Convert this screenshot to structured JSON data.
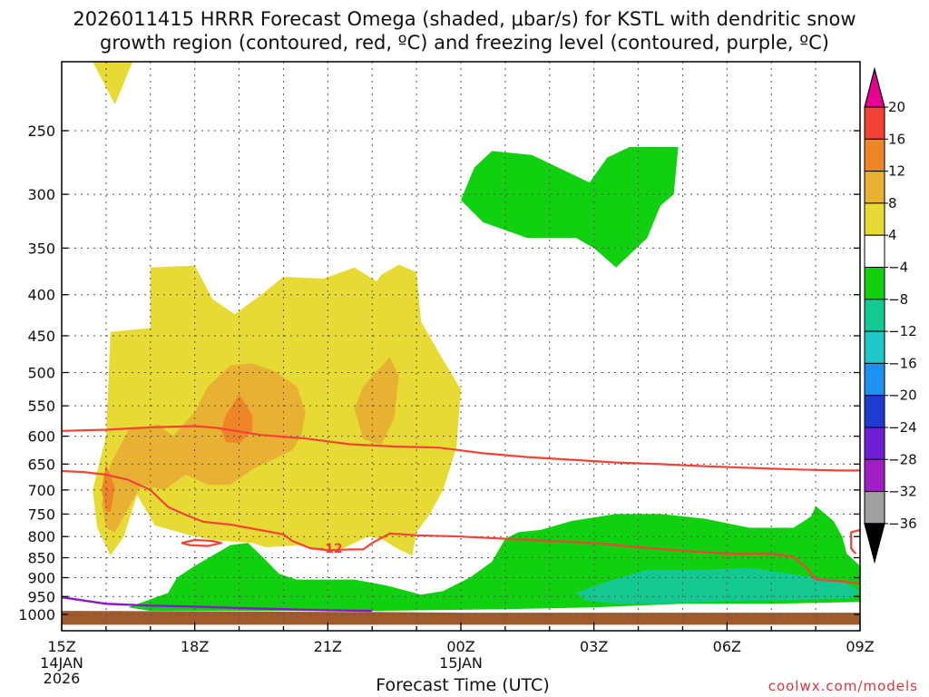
{
  "title_line1": "2026011415 HRRR Forecast Omega (shaded, μbar/s) for KSTL with dendritic snow",
  "title_line2": "growth region (contoured, red, ºC) and freezing level (contoured, purple, ºC)",
  "xlabel": "Forecast Time (UTC)",
  "credit": "coolwx.com/models",
  "contour_label": "−12",
  "chart_data": {
    "type": "heatmap",
    "title": "2026011415 HRRR Forecast Omega (shaded, μbar/s) for KSTL with dendritic snow growth region (contoured, red, ºC) and freezing level (contoured, purple, ºC)",
    "xlabel": "Forecast Time (UTC)",
    "ylabel": "",
    "x_forecast_hours_range": [
      15,
      33
    ],
    "y_pressure_range_hpa": [
      200,
      1030
    ],
    "x_ticks": [
      {
        "h": 15,
        "label": "15Z",
        "sub": [
          "14JAN",
          "2026"
        ]
      },
      {
        "h": 18,
        "label": "18Z",
        "sub": []
      },
      {
        "h": 21,
        "label": "21Z",
        "sub": []
      },
      {
        "h": 24,
        "label": "00Z",
        "sub": [
          "15JAN"
        ]
      },
      {
        "h": 27,
        "label": "03Z",
        "sub": []
      },
      {
        "h": 30,
        "label": "06Z",
        "sub": []
      },
      {
        "h": 33,
        "label": "09Z",
        "sub": []
      }
    ],
    "y_ticks": [
      250,
      300,
      350,
      400,
      450,
      500,
      550,
      600,
      650,
      700,
      750,
      800,
      850,
      900,
      950,
      1000
    ],
    "grid": true,
    "colorbar": {
      "levels": [
        20,
        16,
        12,
        8,
        4,
        -4,
        -8,
        -12,
        -16,
        -20,
        -24,
        -28,
        -32,
        -36
      ],
      "colors": [
        "#e60090",
        "#f44336",
        "#ee8528",
        "#e8b134",
        "#e8da34",
        "#ffffff",
        "#10d010",
        "#14c892",
        "#1ec8c8",
        "#1e90f0",
        "#1e3cd2",
        "#6e1ed2",
        "#a01ec8",
        "#a0a0a0",
        "#000000"
      ]
    },
    "shaded_regions": [
      {
        "omega": "4 to 8",
        "color": "#e8da34",
        "points": [
          [
            15.7,
            200
          ],
          [
            16.6,
            200
          ],
          [
            16.2,
            232
          ],
          [
            15.7,
            200
          ]
        ]
      },
      {
        "omega": "4 to 8",
        "color": "#e8da34",
        "points": [
          [
            16.1,
            845
          ],
          [
            15.8,
            780
          ],
          [
            15.7,
            700
          ],
          [
            16.0,
            600
          ],
          [
            16.1,
            445
          ],
          [
            17.0,
            440
          ],
          [
            17.0,
            370
          ],
          [
            18.0,
            368
          ],
          [
            18.4,
            405
          ],
          [
            18.9,
            423
          ],
          [
            19.5,
            400
          ],
          [
            20.0,
            380
          ],
          [
            20.9,
            382
          ],
          [
            21.6,
            370
          ],
          [
            22.1,
            385
          ],
          [
            22.2,
            378
          ],
          [
            22.6,
            367
          ],
          [
            23.0,
            375
          ],
          [
            23.1,
            432
          ],
          [
            23.6,
            482
          ],
          [
            24.0,
            525
          ],
          [
            23.9,
            620
          ],
          [
            23.6,
            700
          ],
          [
            23.3,
            750
          ],
          [
            23.0,
            790
          ],
          [
            22.9,
            845
          ],
          [
            22.6,
            830
          ],
          [
            22.2,
            805
          ],
          [
            21.9,
            800
          ],
          [
            21.2,
            835
          ],
          [
            20.8,
            830
          ],
          [
            20.4,
            820
          ],
          [
            19.6,
            825
          ],
          [
            19.3,
            815
          ],
          [
            18.6,
            810
          ],
          [
            18.0,
            800
          ],
          [
            17.1,
            775
          ],
          [
            16.7,
            710
          ],
          [
            16.4,
            800
          ],
          [
            16.1,
            845
          ]
        ]
      },
      {
        "omega": "8 to 12",
        "color": "#e8b134",
        "points": [
          [
            16.0,
            780
          ],
          [
            15.9,
            730
          ],
          [
            16.1,
            650
          ],
          [
            16.5,
            590
          ],
          [
            17.2,
            580
          ],
          [
            17.5,
            600
          ],
          [
            18.0,
            560
          ],
          [
            18.3,
            520
          ],
          [
            18.8,
            490
          ],
          [
            19.3,
            487
          ],
          [
            19.8,
            498
          ],
          [
            20.3,
            520
          ],
          [
            20.5,
            560
          ],
          [
            20.4,
            600
          ],
          [
            20.2,
            625
          ],
          [
            19.8,
            640
          ],
          [
            19.3,
            660
          ],
          [
            18.8,
            690
          ],
          [
            18.3,
            690
          ],
          [
            17.8,
            670
          ],
          [
            17.3,
            700
          ],
          [
            16.8,
            690
          ],
          [
            16.2,
            790
          ],
          [
            16.0,
            780
          ]
        ]
      },
      {
        "omega": "8 to 12",
        "color": "#e8b134",
        "points": [
          [
            22.2,
            615
          ],
          [
            21.8,
            605
          ],
          [
            21.6,
            555
          ],
          [
            21.8,
            520
          ],
          [
            22.4,
            478
          ],
          [
            22.6,
            505
          ],
          [
            22.5,
            570
          ],
          [
            22.2,
            615
          ]
        ]
      },
      {
        "omega": "12 to 16",
        "color": "#ee8528",
        "points": [
          [
            16.0,
            745
          ],
          [
            15.9,
            700
          ],
          [
            16.0,
            650
          ],
          [
            16.2,
            695
          ],
          [
            16.1,
            745
          ],
          [
            16.0,
            745
          ]
        ]
      },
      {
        "omega": "12 to 16",
        "color": "#ee8528",
        "points": [
          [
            18.7,
            610
          ],
          [
            18.6,
            590
          ],
          [
            18.7,
            565
          ],
          [
            19.0,
            532
          ],
          [
            19.3,
            565
          ],
          [
            19.3,
            590
          ],
          [
            19.0,
            612
          ],
          [
            18.7,
            610
          ]
        ]
      },
      {
        "omega": "-4 to -8",
        "color": "#10d010",
        "points": [
          [
            24.0,
            305
          ],
          [
            24.3,
            278
          ],
          [
            24.7,
            265
          ],
          [
            25.6,
            268
          ],
          [
            26.9,
            290
          ],
          [
            27.3,
            270
          ],
          [
            27.8,
            262
          ],
          [
            28.9,
            262
          ],
          [
            28.8,
            300
          ],
          [
            28.5,
            310
          ],
          [
            28.2,
            340
          ],
          [
            27.5,
            370
          ],
          [
            27.0,
            350
          ],
          [
            26.6,
            340
          ],
          [
            25.5,
            340
          ],
          [
            24.5,
            325
          ],
          [
            24.0,
            305
          ]
        ]
      },
      {
        "omega": "-4 to -8",
        "color": "#10d010",
        "points": [
          [
            16.5,
            980
          ],
          [
            17.4,
            940
          ],
          [
            17.6,
            900
          ],
          [
            18.0,
            870
          ],
          [
            18.8,
            820
          ],
          [
            19.2,
            815
          ],
          [
            19.5,
            845
          ],
          [
            19.9,
            890
          ],
          [
            20.3,
            905
          ],
          [
            21.6,
            905
          ],
          [
            22.3,
            920
          ],
          [
            22.8,
            935
          ],
          [
            23.1,
            945
          ],
          [
            23.6,
            935
          ],
          [
            24.2,
            900
          ],
          [
            24.7,
            860
          ],
          [
            25.0,
            805
          ],
          [
            25.3,
            790
          ],
          [
            25.8,
            785
          ],
          [
            26.5,
            765
          ],
          [
            27.5,
            750
          ],
          [
            28.5,
            750
          ],
          [
            29.5,
            760
          ],
          [
            30.5,
            780
          ],
          [
            31.5,
            780
          ],
          [
            31.9,
            755
          ],
          [
            32.0,
            733
          ],
          [
            32.4,
            765
          ],
          [
            32.6,
            800
          ],
          [
            32.7,
            840
          ],
          [
            33.0,
            870
          ],
          [
            33.0,
            965
          ],
          [
            31.0,
            970
          ],
          [
            29.0,
            970
          ],
          [
            27.0,
            980
          ],
          [
            25.0,
            985
          ],
          [
            22.0,
            990
          ],
          [
            19.0,
            990
          ],
          [
            17.0,
            990
          ],
          [
            16.5,
            980
          ]
        ]
      },
      {
        "omega": "-8 to -12",
        "color": "#14c892",
        "points": [
          [
            26.6,
            940
          ],
          [
            27.3,
            910
          ],
          [
            28.2,
            880
          ],
          [
            29.5,
            880
          ],
          [
            30.5,
            875
          ],
          [
            31.1,
            885
          ],
          [
            32.0,
            900
          ],
          [
            32.7,
            915
          ],
          [
            33.0,
            935
          ],
          [
            32.8,
            955
          ],
          [
            31.5,
            960
          ],
          [
            30.0,
            962
          ],
          [
            28.5,
            970
          ],
          [
            27.5,
            970
          ],
          [
            26.8,
            960
          ],
          [
            26.6,
            940
          ]
        ]
      },
      {
        "omega": "surface",
        "color": "#a05a2c",
        "points": [
          [
            15,
            990
          ],
          [
            22,
            993
          ],
          [
            24,
            995
          ],
          [
            28,
            995
          ],
          [
            33,
            995
          ],
          [
            33,
            1030
          ],
          [
            15,
            1030
          ],
          [
            15,
            990
          ]
        ]
      }
    ],
    "dendritic_contours": [
      {
        "label": "dendritic snow growth region boundary (-12)",
        "points": [
          [
            15,
            591
          ],
          [
            16,
            589
          ],
          [
            17,
            585
          ],
          [
            18,
            583
          ],
          [
            18.5,
            586
          ],
          [
            19.5,
            598
          ],
          [
            20.5,
            604
          ],
          [
            21.5,
            614
          ],
          [
            22.5,
            618
          ],
          [
            23.5,
            620
          ],
          [
            24.5,
            630
          ],
          [
            25.5,
            637
          ],
          [
            26.5,
            642
          ],
          [
            27.5,
            647
          ],
          [
            28.5,
            650
          ],
          [
            29.5,
            654
          ],
          [
            30.5,
            657
          ],
          [
            31.5,
            660
          ],
          [
            32.5,
            662
          ],
          [
            33,
            662
          ]
        ]
      },
      {
        "label": "dendritic snow growth region boundary (-12)",
        "points": [
          [
            15,
            663
          ],
          [
            15.5,
            665
          ],
          [
            16.0,
            670
          ],
          [
            16.5,
            680
          ],
          [
            17.0,
            700
          ],
          [
            17.4,
            735
          ],
          [
            17.8,
            752
          ],
          [
            18.2,
            767
          ],
          [
            18.8,
            773
          ],
          [
            19.2,
            780
          ],
          [
            20.0,
            795
          ],
          [
            20.2,
            810
          ],
          [
            20.6,
            827
          ],
          [
            21.0,
            832
          ],
          [
            21.5,
            830
          ],
          [
            21.8,
            830
          ],
          [
            22.0,
            815
          ],
          [
            22.4,
            793
          ],
          [
            23.0,
            797
          ],
          [
            24.0,
            800
          ],
          [
            25.0,
            805
          ],
          [
            26.0,
            810
          ],
          [
            27.0,
            815
          ],
          [
            28.0,
            825
          ],
          [
            29.0,
            833
          ],
          [
            30.0,
            840
          ],
          [
            31.0,
            840
          ],
          [
            31.5,
            848
          ],
          [
            31.8,
            875
          ],
          [
            32.0,
            905
          ],
          [
            32.6,
            910
          ],
          [
            33.0,
            915
          ]
        ]
      },
      {
        "label": "dendritic snow growth region boundary (-12)",
        "points": [
          [
            32.9,
            840
          ],
          [
            32.8,
            828
          ],
          [
            32.8,
            790
          ],
          [
            33,
            785
          ]
        ]
      },
      {
        "label": "closed contour",
        "points": [
          [
            17.7,
            815
          ],
          [
            18.0,
            808
          ],
          [
            18.4,
            810
          ],
          [
            18.6,
            815
          ],
          [
            18.3,
            822
          ],
          [
            17.9,
            820
          ],
          [
            17.7,
            815
          ]
        ]
      }
    ],
    "freezing_level": [
      [
        15,
        952
      ],
      [
        16,
        970
      ],
      [
        17,
        975
      ],
      [
        18,
        978
      ],
      [
        19,
        982
      ],
      [
        20,
        985
      ],
      [
        21,
        988
      ],
      [
        22,
        990
      ]
    ],
    "legend_position": "right (colorbar)"
  }
}
